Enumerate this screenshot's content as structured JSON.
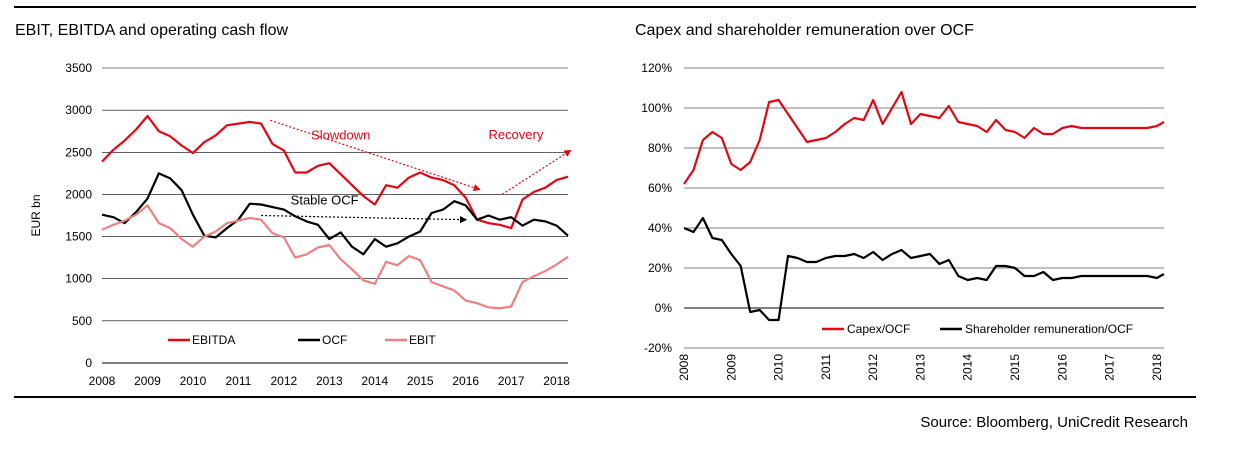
{
  "page": {
    "source": "Source: Bloomberg, UniCredit Research"
  },
  "colors": {
    "ebitda": "#e30613",
    "ocf": "#000000",
    "ebit": "#f08080",
    "capex_ocf": "#e30613",
    "remuneration_ocf": "#000000",
    "annotation": "#e30613",
    "grid": "#000000"
  },
  "chart_data": [
    {
      "type": "line",
      "title": "EBIT, EBITDA and operating cash flow",
      "ylabel": "EUR bn",
      "xlabel": "",
      "ylim": [
        0,
        3500
      ],
      "yticks": [
        0,
        500,
        1000,
        1500,
        2000,
        2500,
        3000,
        3500
      ],
      "xlim": [
        2008,
        2018.25
      ],
      "xticks": [
        2008,
        2009,
        2010,
        2011,
        2012,
        2013,
        2014,
        2015,
        2016,
        2017,
        2018
      ],
      "grid": "horizontal",
      "legend_position": "bottom",
      "series": [
        {
          "name": "EBITDA",
          "color": "#e30613",
          "x": [
            2008.0,
            2008.25,
            2008.5,
            2008.75,
            2009.0,
            2009.25,
            2009.5,
            2009.75,
            2010.0,
            2010.25,
            2010.5,
            2010.75,
            2011.0,
            2011.25,
            2011.5,
            2011.75,
            2012.0,
            2012.25,
            2012.5,
            2012.75,
            2013.0,
            2013.25,
            2013.5,
            2013.75,
            2014.0,
            2014.25,
            2014.5,
            2014.75,
            2015.0,
            2015.25,
            2015.5,
            2015.75,
            2016.0,
            2016.25,
            2016.5,
            2016.75,
            2017.0,
            2017.25,
            2017.5,
            2017.75,
            2018.0,
            2018.25
          ],
          "values": [
            2390,
            2530,
            2640,
            2770,
            2930,
            2750,
            2690,
            2580,
            2490,
            2620,
            2700,
            2820,
            2840,
            2860,
            2840,
            2600,
            2520,
            2260,
            2260,
            2340,
            2370,
            2240,
            2110,
            1980,
            1880,
            2110,
            2080,
            2200,
            2260,
            2200,
            2170,
            2110,
            1960,
            1700,
            1660,
            1640,
            1600,
            1940,
            2030,
            2080,
            2170,
            2210
          ]
        },
        {
          "name": "OCF",
          "color": "#000000",
          "x": [
            2008.0,
            2008.25,
            2008.5,
            2008.75,
            2009.0,
            2009.25,
            2009.5,
            2009.75,
            2010.0,
            2010.25,
            2010.5,
            2010.75,
            2011.0,
            2011.25,
            2011.5,
            2011.75,
            2012.0,
            2012.25,
            2012.5,
            2012.75,
            2013.0,
            2013.25,
            2013.5,
            2013.75,
            2014.0,
            2014.25,
            2014.5,
            2014.75,
            2015.0,
            2015.25,
            2015.5,
            2015.75,
            2016.0,
            2016.25,
            2016.5,
            2016.75,
            2017.0,
            2017.25,
            2017.5,
            2017.75,
            2018.0,
            2018.25
          ],
          "values": [
            1760,
            1730,
            1660,
            1790,
            1950,
            2250,
            2190,
            2050,
            1760,
            1510,
            1490,
            1600,
            1700,
            1890,
            1880,
            1850,
            1820,
            1740,
            1680,
            1640,
            1470,
            1550,
            1380,
            1290,
            1470,
            1380,
            1420,
            1500,
            1560,
            1780,
            1820,
            1920,
            1870,
            1700,
            1750,
            1700,
            1730,
            1630,
            1700,
            1680,
            1630,
            1510
          ]
        },
        {
          "name": "EBIT",
          "color": "#f08080",
          "x": [
            2008.0,
            2008.25,
            2008.5,
            2008.75,
            2009.0,
            2009.25,
            2009.5,
            2009.75,
            2010.0,
            2010.25,
            2010.5,
            2010.75,
            2011.0,
            2011.25,
            2011.5,
            2011.75,
            2012.0,
            2012.25,
            2012.5,
            2012.75,
            2013.0,
            2013.25,
            2013.5,
            2013.75,
            2014.0,
            2014.25,
            2014.5,
            2014.75,
            2015.0,
            2015.25,
            2015.5,
            2015.75,
            2016.0,
            2016.25,
            2016.5,
            2016.75,
            2017.0,
            2017.25,
            2017.5,
            2017.75,
            2018.0,
            2018.25
          ],
          "values": [
            1580,
            1640,
            1690,
            1760,
            1870,
            1660,
            1600,
            1470,
            1380,
            1500,
            1560,
            1660,
            1690,
            1720,
            1700,
            1540,
            1490,
            1250,
            1290,
            1370,
            1400,
            1230,
            1110,
            980,
            940,
            1200,
            1160,
            1270,
            1220,
            960,
            910,
            860,
            740,
            710,
            660,
            650,
            670,
            960,
            1030,
            1090,
            1170,
            1260
          ]
        }
      ],
      "annotations": [
        {
          "text": "Slowdown",
          "x": 2012.6,
          "y": 2700,
          "arrow_from": [
            2011.7,
            2880
          ],
          "arrow_to": [
            2016.3,
            2060
          ],
          "color": "#e30613"
        },
        {
          "text": "Recovery",
          "x": 2016.5,
          "y": 2660,
          "arrow_from": [
            2016.8,
            2000
          ],
          "arrow_to": [
            2018.3,
            2520
          ],
          "color": "#e30613"
        },
        {
          "text": "Stable OCF",
          "x": 2012.15,
          "y": 1880,
          "arrow_from": [
            2011.5,
            1750
          ],
          "arrow_to": [
            2016.0,
            1700
          ],
          "color": "#000000"
        }
      ]
    },
    {
      "type": "line",
      "title": "Capex and shareholder remuneration over OCF",
      "ylabel": "",
      "xlabel": "",
      "ylim": [
        -0.2,
        1.2
      ],
      "yticks": [
        "-20%",
        "0%",
        "20%",
        "40%",
        "60%",
        "80%",
        "100%",
        "120%"
      ],
      "ytick_values": [
        -0.2,
        0,
        0.2,
        0.4,
        0.6,
        0.8,
        1.0,
        1.2
      ],
      "xlim": [
        2008,
        2018.15
      ],
      "xticks": [
        2008,
        2009,
        2010,
        2011,
        2012,
        2013,
        2014,
        2015,
        2016,
        2017,
        2018
      ],
      "xtick_rotation": "vertical",
      "grid": "horizontal",
      "legend_position": "bottom",
      "series": [
        {
          "name": "Capex/OCF",
          "color": "#e30613",
          "x": [
            2008.0,
            2008.2,
            2008.4,
            2008.6,
            2008.8,
            2009.0,
            2009.2,
            2009.4,
            2009.6,
            2009.8,
            2010.0,
            2010.2,
            2010.4,
            2010.6,
            2010.8,
            2011.0,
            2011.2,
            2011.4,
            2011.6,
            2011.8,
            2012.0,
            2012.2,
            2012.4,
            2012.6,
            2012.8,
            2013.0,
            2013.2,
            2013.4,
            2013.6,
            2013.8,
            2014.0,
            2014.2,
            2014.4,
            2014.6,
            2014.8,
            2015.0,
            2015.2,
            2015.4,
            2015.6,
            2015.8,
            2016.0,
            2016.2,
            2016.4,
            2016.6,
            2016.8,
            2017.0,
            2017.2,
            2017.4,
            2017.6,
            2017.8,
            2018.0,
            2018.15
          ],
          "values": [
            0.62,
            0.69,
            0.84,
            0.88,
            0.85,
            0.72,
            0.69,
            0.73,
            0.84,
            1.03,
            1.04,
            0.97,
            0.9,
            0.83,
            0.84,
            0.85,
            0.88,
            0.92,
            0.95,
            0.94,
            1.04,
            0.92,
            1.0,
            1.08,
            0.92,
            0.97,
            0.96,
            0.95,
            1.01,
            0.93,
            0.92,
            0.91,
            0.88,
            0.94,
            0.89,
            0.88,
            0.85,
            0.9,
            0.87,
            0.87,
            0.9,
            0.91,
            0.9,
            0.9,
            0.9,
            0.9,
            0.9,
            0.9,
            0.9,
            0.9,
            0.91,
            0.93
          ]
        },
        {
          "name": "Shareholder remuneration/OCF",
          "color": "#000000",
          "x": [
            2008.0,
            2008.2,
            2008.4,
            2008.6,
            2008.8,
            2009.0,
            2009.2,
            2009.4,
            2009.6,
            2009.8,
            2010.0,
            2010.2,
            2010.4,
            2010.6,
            2010.8,
            2011.0,
            2011.2,
            2011.4,
            2011.6,
            2011.8,
            2012.0,
            2012.2,
            2012.4,
            2012.6,
            2012.8,
            2013.0,
            2013.2,
            2013.4,
            2013.6,
            2013.8,
            2014.0,
            2014.2,
            2014.4,
            2014.6,
            2014.8,
            2015.0,
            2015.2,
            2015.4,
            2015.6,
            2015.8,
            2016.0,
            2016.2,
            2016.4,
            2016.6,
            2016.8,
            2017.0,
            2017.2,
            2017.4,
            2017.6,
            2017.8,
            2018.0,
            2018.15
          ],
          "values": [
            0.4,
            0.38,
            0.45,
            0.35,
            0.34,
            0.27,
            0.21,
            -0.02,
            -0.01,
            -0.06,
            -0.06,
            0.26,
            0.25,
            0.23,
            0.23,
            0.25,
            0.26,
            0.26,
            0.27,
            0.25,
            0.28,
            0.24,
            0.27,
            0.29,
            0.25,
            0.26,
            0.27,
            0.22,
            0.24,
            0.16,
            0.14,
            0.15,
            0.14,
            0.21,
            0.21,
            0.2,
            0.16,
            0.16,
            0.18,
            0.14,
            0.15,
            0.15,
            0.16,
            0.16,
            0.16,
            0.16,
            0.16,
            0.16,
            0.16,
            0.16,
            0.15,
            0.17
          ]
        }
      ]
    }
  ]
}
